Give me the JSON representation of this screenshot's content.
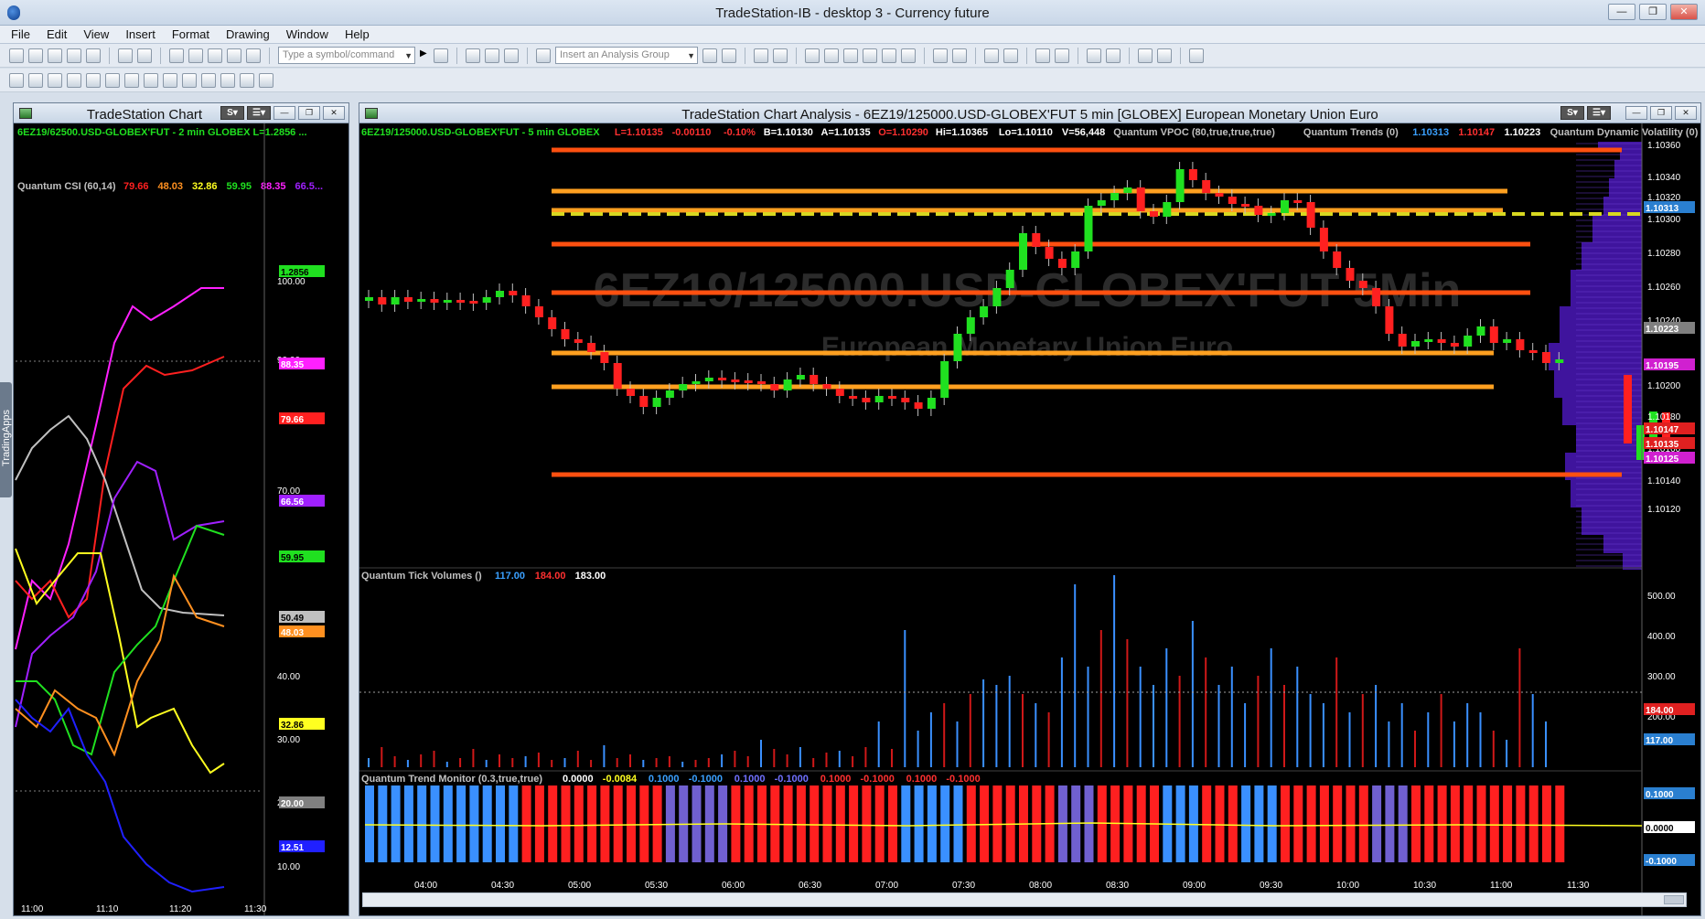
{
  "window": {
    "title": "TradeStation-IB - desktop 3 - Currency future",
    "controls": [
      "—",
      "❐",
      "✕"
    ]
  },
  "menu": [
    "File",
    "Edit",
    "View",
    "Insert",
    "Format",
    "Drawing",
    "Window",
    "Help"
  ],
  "toolbar": {
    "symbol_placeholder": "Type a symbol/command",
    "analysis_group_placeholder": "Insert an Analysis Group"
  },
  "side_tab": "TradingApps",
  "left_chart": {
    "window_title": "TradeStation Chart",
    "symbol_line": "6EZ19/62500.USD-GLOBEX'FUT - 2 min  GLOBEX  L=1.2856  ...",
    "indicator_label": "Quantum CSI (60,14)",
    "indicator_values": [
      {
        "text": "79.66",
        "color": "#ff2020"
      },
      {
        "text": "48.03",
        "color": "#ff9020"
      },
      {
        "text": "32.86",
        "color": "#ffff20"
      },
      {
        "text": "59.95",
        "color": "#20e020"
      },
      {
        "text": "88.35",
        "color": "#ff20ff"
      },
      {
        "text": "66.5...",
        "color": "#a020ff"
      }
    ],
    "axis_ticks": [
      "100.00",
      "90.00",
      "70.00",
      "40.00",
      "30.00",
      "20.00",
      "10.00"
    ],
    "right_tags": [
      {
        "text": "1.2856",
        "color": "#20e020"
      },
      {
        "text": "88.35",
        "color": "#ff20ff"
      },
      {
        "text": "79.66",
        "color": "#ff2020"
      },
      {
        "text": "66.56",
        "color": "#a020ff"
      },
      {
        "text": "59.95",
        "color": "#20e020"
      },
      {
        "text": "50.49",
        "color": "#c0c0c0"
      },
      {
        "text": "48.03",
        "color": "#ff9020"
      },
      {
        "text": "32.86",
        "color": "#ffff20"
      },
      {
        "text": "20.00",
        "color": "#808080"
      },
      {
        "text": "12.51",
        "color": "#2020ff"
      }
    ],
    "time_labels": [
      "11:00",
      "11:10",
      "11:20",
      "11:30"
    ]
  },
  "main_chart": {
    "window_title": "TradeStation Chart Analysis - 6EZ19/125000.USD-GLOBEX'FUT 5 min [GLOBEX] European Monetary Union Euro",
    "watermark_symbol": "6EZ19/125000.USD-GLOBEX'FUT 5Min",
    "watermark_name": "European Monetary Union Euro",
    "header_line": [
      {
        "text": "6EZ19/125000.USD-GLOBEX'FUT - 5 min  GLOBEX",
        "color": "#20e020"
      },
      {
        "text": "L=1.10135",
        "color": "#ff3030"
      },
      {
        "text": "-0.00110",
        "color": "#ff3030"
      },
      {
        "text": "-0.10%",
        "color": "#ff3030"
      },
      {
        "text": "B=1.10130",
        "color": "#ffffff"
      },
      {
        "text": "A=1.10135",
        "color": "#ffffff"
      },
      {
        "text": "O=1.10290",
        "color": "#ff3030"
      },
      {
        "text": "Hi=1.10365",
        "color": "#ffffff"
      },
      {
        "text": "Lo=1.10110",
        "color": "#ffffff"
      },
      {
        "text": "V=56,448",
        "color": "#ffffff"
      },
      {
        "text": "Quantum VPOC (80,true,true,true)",
        "color": "#c0c0c0"
      },
      {
        "text": "Quantum Trends (0)",
        "color": "#c0c0c0"
      },
      {
        "text": "1.10313",
        "color": "#3aa0ff"
      },
      {
        "text": "1.10147",
        "color": "#ff3030"
      },
      {
        "text": "1.10223",
        "color": "#ffffff"
      },
      {
        "text": "Quantum Dynamic Volatility (0)",
        "color": "#c0c0c0"
      }
    ],
    "price_ticks": [
      "1.10360",
      "1.10340",
      "1.10320",
      "1.10300",
      "1.10280",
      "1.10260",
      "1.10240",
      "1.10200",
      "1.10180",
      "1.10160",
      "1.10140",
      "1.10120"
    ],
    "price_tags": [
      {
        "text": "1.10313",
        "color": "#2a7fd0"
      },
      {
        "text": "1.10223",
        "color": "#808080"
      },
      {
        "text": "1.10195",
        "color": "#d020d0"
      },
      {
        "text": "1.10147",
        "color": "#e02020"
      },
      {
        "text": "1.10135",
        "color": "#e02020"
      },
      {
        "text": "1.10125",
        "color": "#d020d0"
      }
    ],
    "volume_label": "Quantum Tick Volumes ()",
    "volume_values": [
      {
        "text": "117.00",
        "color": "#3aa0ff"
      },
      {
        "text": "184.00",
        "color": "#ff3030"
      },
      {
        "text": "183.00",
        "color": "#ffffff"
      }
    ],
    "volume_ticks": [
      "500.00",
      "400.00",
      "300.00",
      "200.00"
    ],
    "volume_tags": [
      {
        "text": "184.00",
        "color": "#e02020"
      },
      {
        "text": "117.00",
        "color": "#2a7fd0"
      }
    ],
    "trend_label": "Quantum Trend Monitor (0.3,true,true)",
    "trend_values": [
      {
        "text": "0.0000",
        "color": "#ffffff"
      },
      {
        "text": "-0.0084",
        "color": "#ffff20"
      },
      {
        "text": "0.1000",
        "color": "#3aa0ff"
      },
      {
        "text": "-0.1000",
        "color": "#3aa0ff"
      },
      {
        "text": "0.1000",
        "color": "#7070ff"
      },
      {
        "text": "-0.1000",
        "color": "#7070ff"
      },
      {
        "text": "0.1000",
        "color": "#ff3030"
      },
      {
        "text": "-0.1000",
        "color": "#ff3030"
      },
      {
        "text": "0.1000",
        "color": "#ff3030"
      },
      {
        "text": "-0.1000",
        "color": "#ff3030"
      }
    ],
    "trend_tags": [
      {
        "text": "0.1000",
        "color": "#2a7fd0"
      },
      {
        "text": "0.0000",
        "color": "#000000"
      },
      {
        "text": "-0.1000",
        "color": "#2a7fd0"
      }
    ],
    "time_labels": [
      "04:00",
      "04:30",
      "05:00",
      "05:30",
      "06:00",
      "06:30",
      "07:00",
      "07:30",
      "08:00",
      "08:30",
      "09:00",
      "09:30",
      "10:00",
      "10:30",
      "11:00",
      "11:30"
    ]
  }
}
